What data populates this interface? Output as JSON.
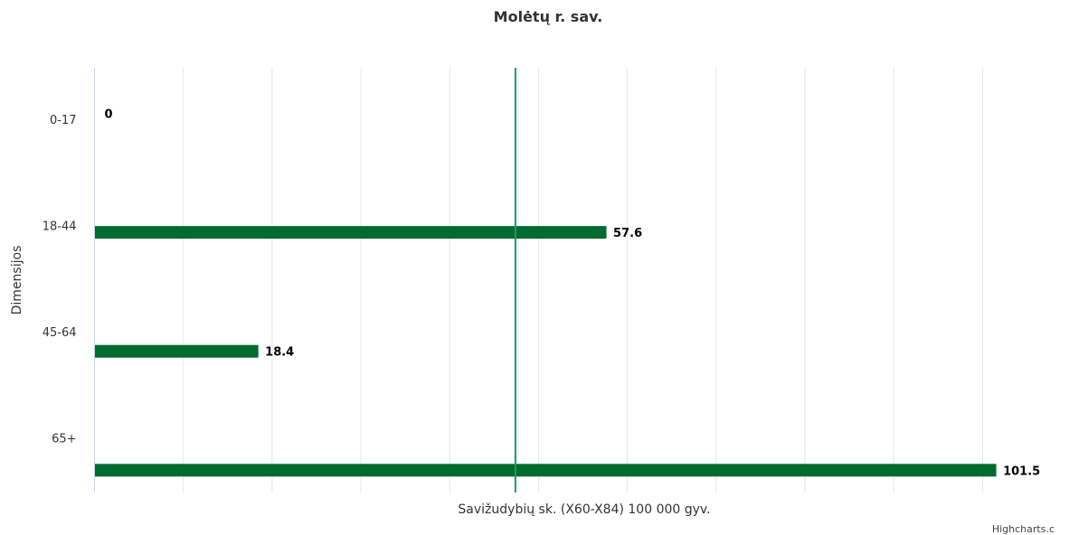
{
  "chart_data": {
    "type": "bar",
    "orientation": "horizontal",
    "title": "Molėtų r. sav.",
    "xlabel": "Savižudybių sk. (X60-X84) 100 000 gyv.",
    "ylabel": "Dimensijos",
    "categories": [
      "0-17",
      "18-44",
      "45-64",
      "65+"
    ],
    "series": [
      {
        "values": [
          0,
          57.6,
          18.4,
          101.5
        ],
        "color": "#006b2e"
      }
    ],
    "reference_line": {
      "value": 47.4,
      "color": "#1a9a6c"
    },
    "xlim": [
      0,
      102
    ],
    "grid": true,
    "legend": "none"
  },
  "credits": "Highcharts.c",
  "colors": {
    "gridline": "#e6e6e6",
    "axis": "#ccd6eb"
  }
}
